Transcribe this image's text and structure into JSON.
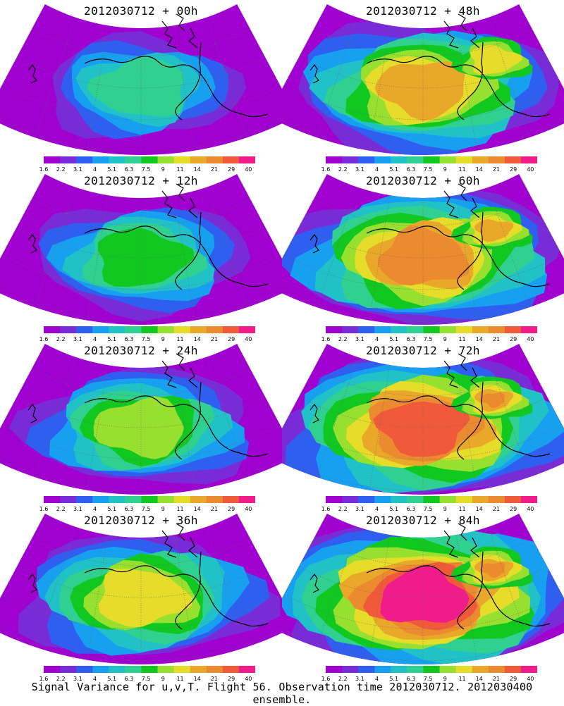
{
  "panels": [
    {
      "title": "2012030712 + 00h",
      "level": 0
    },
    {
      "title": "2012030712 + 48h",
      "level": 4
    },
    {
      "title": "2012030712 + 12h",
      "level": 1
    },
    {
      "title": "2012030712 + 60h",
      "level": 5
    },
    {
      "title": "2012030712 + 24h",
      "level": 2
    },
    {
      "title": "2012030712 + 72h",
      "level": 6
    },
    {
      "title": "2012030712 + 36h",
      "level": 3
    },
    {
      "title": "2012030712 + 84h",
      "level": 7
    }
  ],
  "colorbar": {
    "labels": [
      "1.6",
      "2.2",
      "3.1",
      "4",
      "5.1",
      "6.3",
      "7.5",
      "9",
      "11",
      "14",
      "21",
      "29",
      "40"
    ],
    "colors": [
      "#a000d0",
      "#7a2bd8",
      "#2f5ff0",
      "#18a0f0",
      "#20c2c8",
      "#30d090",
      "#10c820",
      "#98e030",
      "#e6dc2a",
      "#eaa82a",
      "#ec8a30",
      "#f05a3a",
      "#f01c8c"
    ]
  },
  "footer": "Signal Variance for u,v,T. Flight 56. Observation time 2012030712. 2012030400 ensemble."
}
